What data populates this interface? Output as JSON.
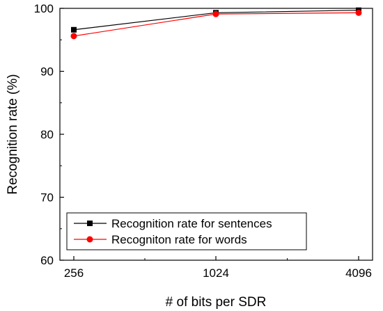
{
  "chart_data": {
    "type": "line",
    "title": "",
    "xlabel": "# of bits per SDR",
    "ylabel": "Recognition rate (%)",
    "categories": [
      "256",
      "1024",
      "4096"
    ],
    "ylim": [
      60,
      100
    ],
    "yticks": [
      "60",
      "70",
      "80",
      "90",
      "100"
    ],
    "grid": false,
    "legend_position": "bottom-left",
    "series": [
      {
        "name": "Recognition rate for sentences",
        "values": [
          96.6,
          99.3,
          99.7
        ],
        "color": "#000000",
        "marker": "square"
      },
      {
        "name": "Recogniton rate for words",
        "values": [
          95.6,
          99.1,
          99.3
        ],
        "color": "#ff0000",
        "marker": "circle"
      }
    ]
  }
}
